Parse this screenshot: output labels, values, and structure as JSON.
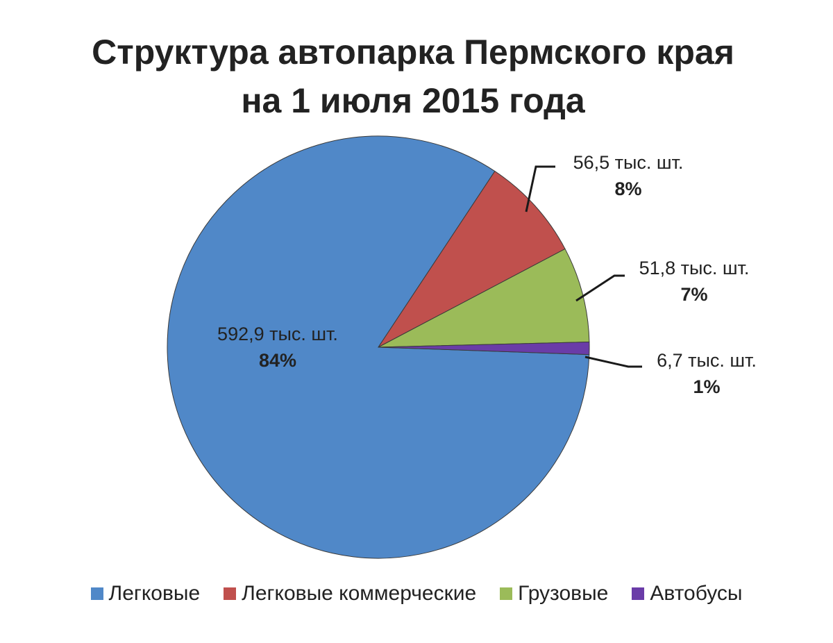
{
  "chart_data": {
    "type": "pie",
    "title": "Структура автопарка Пермского края",
    "subtitle": "на 1 июля 2015 года",
    "categories": [
      "Легковые",
      "Легковые коммерческие",
      "Грузовые",
      "Автобусы"
    ],
    "values": [
      592.9,
      56.5,
      51.8,
      6.7
    ],
    "value_labels": [
      "592,9 тыс. шт.",
      "56,5 тыс. шт.",
      "51,8 тыс. шт.",
      "6,7 тыс. шт."
    ],
    "percent_labels": [
      "84%",
      "8%",
      "7%",
      "1%"
    ],
    "colors": [
      "#5088C8",
      "#C0504D",
      "#9BBB59",
      "#6A3CA8"
    ],
    "legend_position": "bottom"
  }
}
